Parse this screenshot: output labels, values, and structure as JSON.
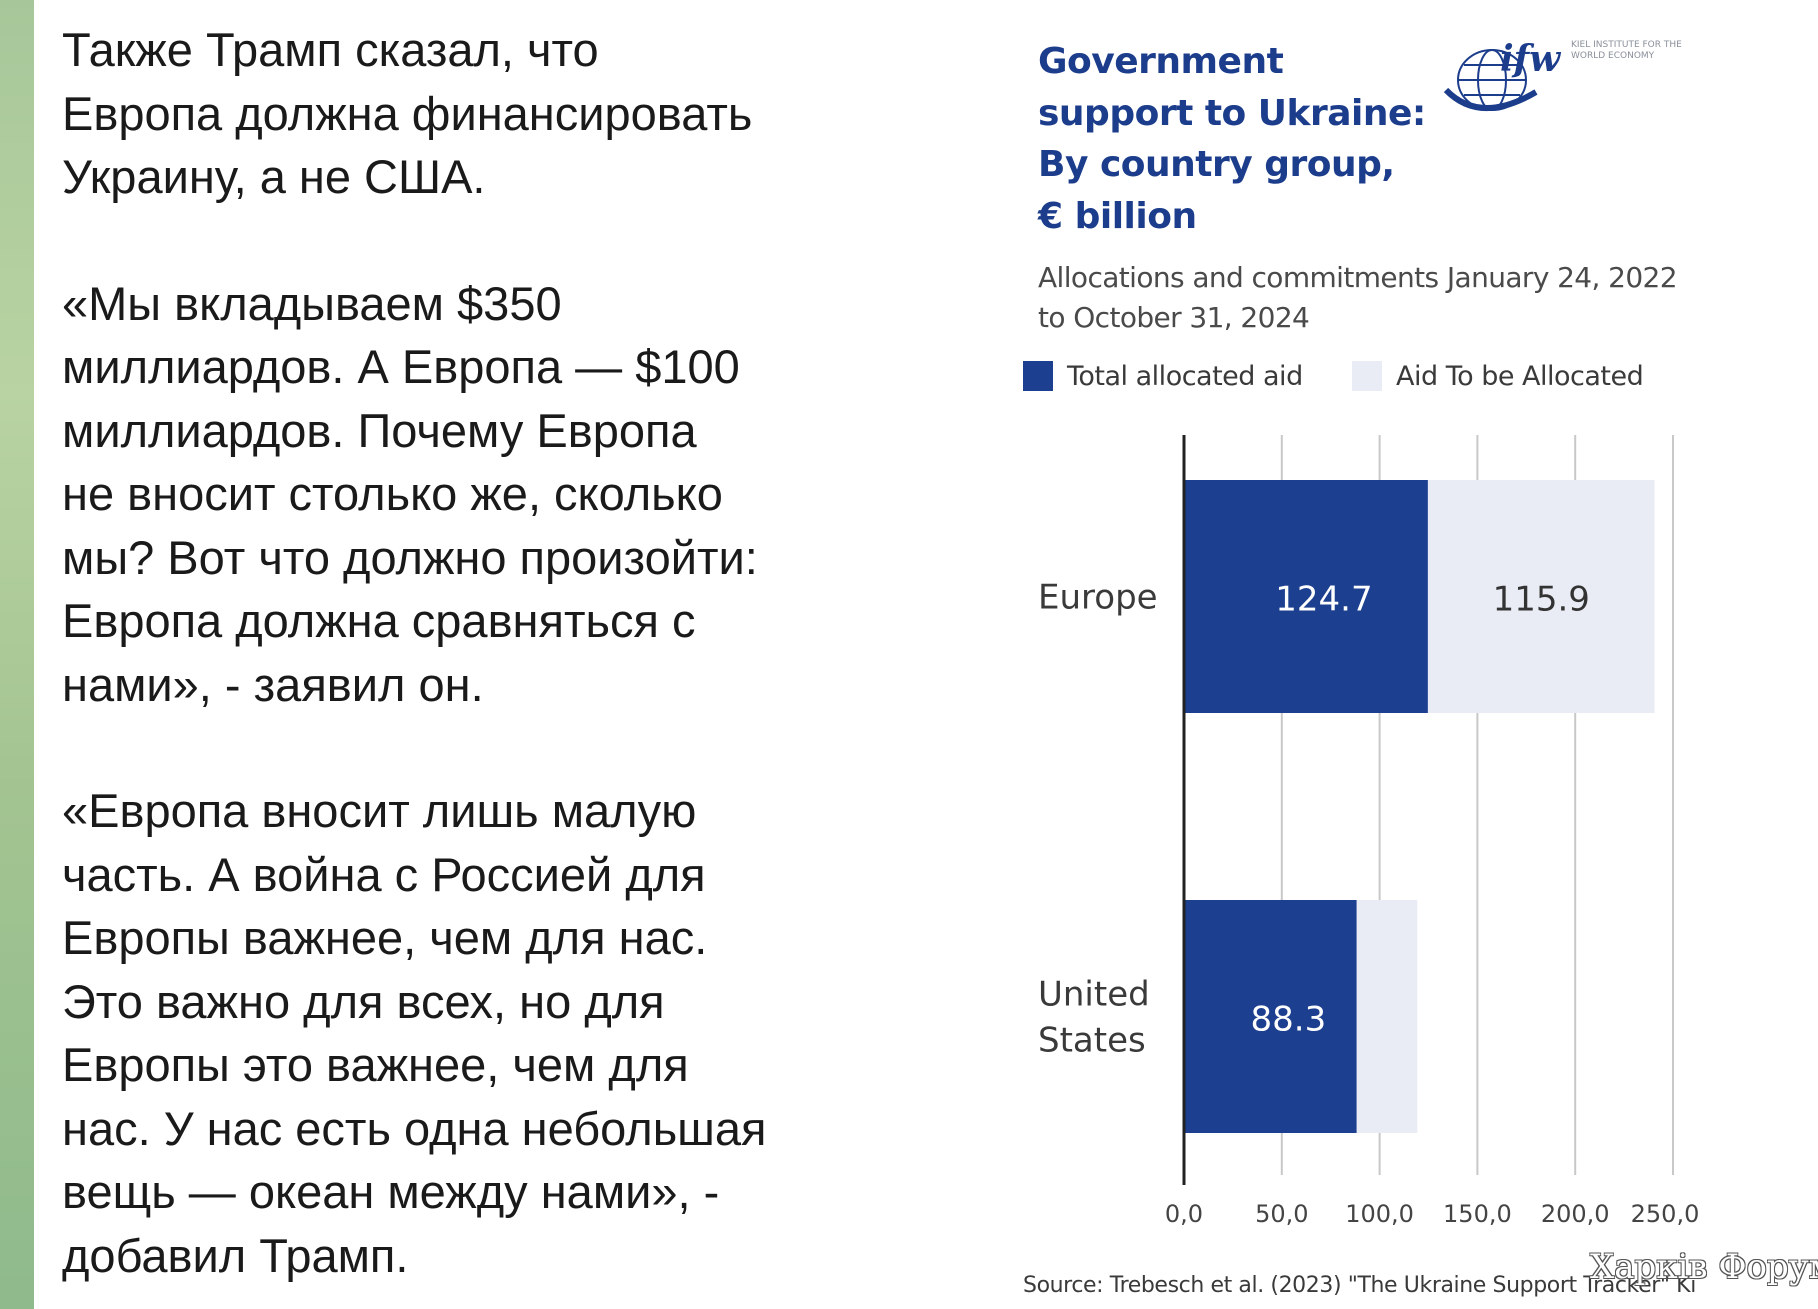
{
  "message": {
    "paragraphs": [
      "Также Трамп сказал, что\nЕвропа должна финансировать\nУкраину, а не США.",
      "«Мы вкладываем $350\nмиллиардов. А Европа — $100\nмиллиардов. Почему Европа\nне вносит столько же, сколько\nмы? Вот что должно произойти:\nЕвропа должна сравняться с\nнами», - заявил он.",
      "«Европа вносит лишь малую\nчасть. А война с Россией для\nЕвропы важнее, чем для нас.\nЭто важно для всех, но для\nЕвропы это важнее, чем для\nнас. У нас есть одна небольшая\nвещь — океан между нами», -\nдобавил Трамп."
    ]
  },
  "logo": {
    "text": "ifw",
    "subtitle": "KIEL INSTITUTE FOR THE WORLD ECONOMY"
  },
  "watermark": "Харків Форум",
  "colors": {
    "allocated": "#1c3f8f",
    "to_be_allocated": "#e9ecf5",
    "title": "#1c3d8c"
  },
  "chart_data": {
    "type": "bar",
    "orientation": "horizontal",
    "stacked": true,
    "title": "Government support to Ukraine: By country group, € billion",
    "subtitle": "Allocations and commitments January 24, 2022 to October 31, 2024",
    "categories": [
      "Europe",
      "United States"
    ],
    "category_display": [
      "Europe",
      "United\nStates"
    ],
    "series": [
      {
        "name": "Total allocated aid",
        "values": [
          124.7,
          88.3
        ],
        "labels": [
          "124.7",
          "88.3"
        ]
      },
      {
        "name": "Aid To be Allocated",
        "values": [
          115.9,
          31.0
        ],
        "labels": [
          "115.9",
          ""
        ]
      }
    ],
    "xticks": [
      0,
      50,
      100,
      150,
      200,
      250
    ],
    "xtick_labels": [
      "0,0",
      "50,0",
      "100,0",
      "150,0",
      "200,0",
      "250,0"
    ],
    "xlim": [
      0,
      250
    ],
    "grid": true,
    "legend": "top-left",
    "source": "Source: Trebesch et al. (2023) \"The Ukraine Support Tracker\" Ki"
  }
}
